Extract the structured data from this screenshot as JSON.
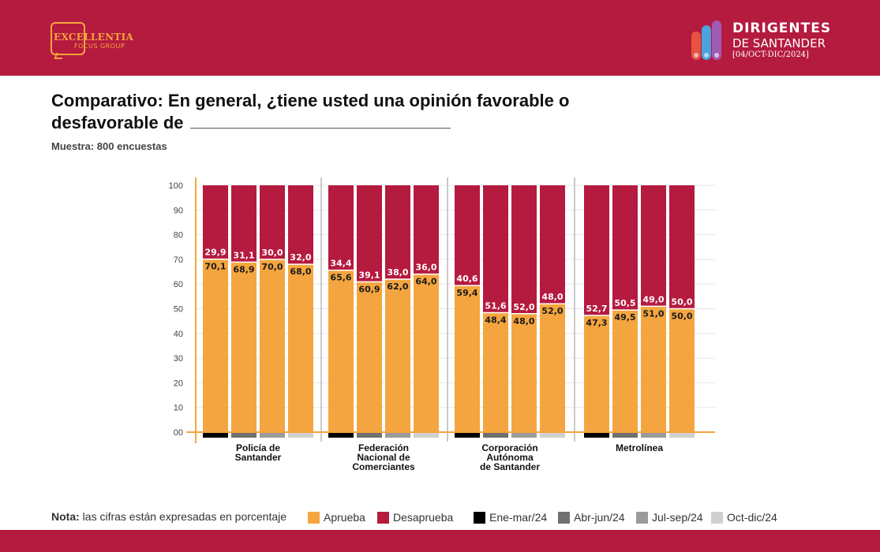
{
  "header": {
    "brand_left": {
      "name": "EXCELLENTIA",
      "sub": "FOCUS GROUP"
    },
    "brand_right": {
      "line1": "DIRIGENTES",
      "line2": "DE SANTANDER",
      "line3": "[04/OCT-DIC/2024]"
    }
  },
  "colors": {
    "brand": "#b51a3f",
    "aprueba": "#f5a53f",
    "desaprueba": "#b51a3f",
    "periods": [
      "#000000",
      "#707070",
      "#9b9b9b",
      "#d0d0d0"
    ],
    "logo_bars": [
      "#e8533f",
      "#4aa3e0",
      "#a05bb5",
      "#8cc63f"
    ]
  },
  "chart_data": {
    "type": "bar",
    "stacked": true,
    "title": "Comparativo: En general, ¿tiene usted una opinión favorable o desfavorable de",
    "subtitle": "Muestra: 800 encuestas",
    "ylim": [
      0,
      100
    ],
    "yticks": [
      "100",
      "90",
      "80",
      "70",
      "60",
      "50",
      "40",
      "30",
      "20",
      "10",
      "00"
    ],
    "grid": true,
    "legend_position": "bottom",
    "groups": [
      {
        "label": [
          "Policía de",
          "Santander"
        ]
      },
      {
        "label": [
          "Federación",
          "Nacional de",
          "Comerciantes"
        ]
      },
      {
        "label": [
          "Corporación",
          "Autónoma",
          "de Santander"
        ]
      },
      {
        "label": [
          "Metrolínea"
        ]
      }
    ],
    "periods": [
      "Ene-mar/24",
      "Abr-jun/24",
      "Jul-sep/24",
      "Oct-dic/24"
    ],
    "series": [
      {
        "name": "Aprueba",
        "values": [
          [
            "70,1",
            "68,9",
            "70,0",
            "68,0"
          ],
          [
            "65,6",
            "60,9",
            "62,0",
            "64,0"
          ],
          [
            "59,4",
            "48,4",
            "48,0",
            "52,0"
          ],
          [
            "47,3",
            "49,5",
            "51,0",
            "50,0"
          ]
        ]
      },
      {
        "name": "Desaprueba",
        "values": [
          [
            "29,9",
            "31,1",
            "30,0",
            "32,0"
          ],
          [
            "34,4",
            "39,1",
            "38,0",
            "36,0"
          ],
          [
            "40,6",
            "51,6",
            "52,0",
            "48,0"
          ],
          [
            "52,7",
            "50,5",
            "49,0",
            "50,0"
          ]
        ]
      }
    ]
  },
  "footer": {
    "note_label": "Nota:",
    "note_text": "las cifras están expresadas en porcentaje"
  },
  "legend": {
    "items": [
      {
        "label": "Aprueba"
      },
      {
        "label": "Desaprueba"
      },
      {
        "label": "Ene-mar/24"
      },
      {
        "label": "Abr-jun/24"
      },
      {
        "label": "Jul-sep/24"
      },
      {
        "label": "Oct-dic/24"
      }
    ]
  }
}
